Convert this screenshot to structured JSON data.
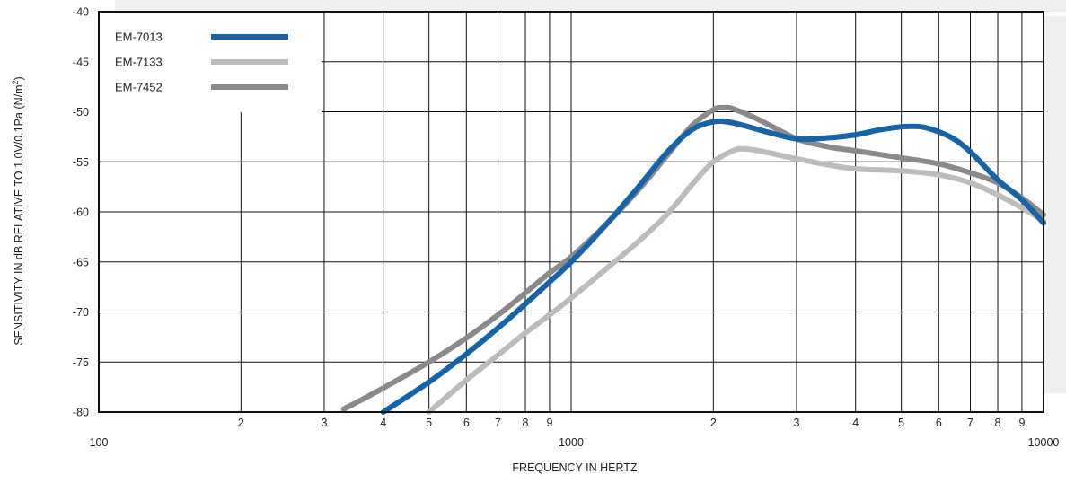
{
  "chart_data": {
    "type": "line",
    "xlabel": "FREQUENCY IN HERTZ",
    "ylabel": "SENSITIVITY IN dB RELATIVE TO 1.0V/0.1Pa (N/m",
    "ylabel_sup": "2",
    "ylabel_end": ")",
    "x_scale": "log",
    "xlim": [
      100,
      10000
    ],
    "ylim": [
      -80,
      -40
    ],
    "grid": true,
    "legend_position": "top-left",
    "x_major_ticks": [
      {
        "value": 100,
        "label": "100"
      },
      {
        "value": 1000,
        "label": "1000"
      },
      {
        "value": 10000,
        "label": "10000"
      }
    ],
    "x_minor_ticks": [
      {
        "value": 200,
        "label": "2"
      },
      {
        "value": 300,
        "label": "3"
      },
      {
        "value": 400,
        "label": "4"
      },
      {
        "value": 500,
        "label": "5"
      },
      {
        "value": 600,
        "label": "6"
      },
      {
        "value": 700,
        "label": "7"
      },
      {
        "value": 800,
        "label": "8"
      },
      {
        "value": 900,
        "label": "9"
      },
      {
        "value": 2000,
        "label": "2"
      },
      {
        "value": 3000,
        "label": "3"
      },
      {
        "value": 4000,
        "label": "4"
      },
      {
        "value": 5000,
        "label": "5"
      },
      {
        "value": 6000,
        "label": "6"
      },
      {
        "value": 7000,
        "label": "7"
      },
      {
        "value": 8000,
        "label": "8"
      },
      {
        "value": 9000,
        "label": "9"
      }
    ],
    "y_ticks": [
      {
        "value": -40,
        "label": "-40"
      },
      {
        "value": -45,
        "label": "-45"
      },
      {
        "value": -50,
        "label": "-50"
      },
      {
        "value": -55,
        "label": "-55"
      },
      {
        "value": -60,
        "label": "-60"
      },
      {
        "value": -65,
        "label": "-65"
      },
      {
        "value": -70,
        "label": "-70"
      },
      {
        "value": -75,
        "label": "-75"
      },
      {
        "value": -80,
        "label": "-80"
      }
    ],
    "series": [
      {
        "name": "EM-7013",
        "color": "#1763a8",
        "x": [
          400,
          500,
          600,
          700,
          800,
          900,
          1000,
          1200,
          1400,
          1600,
          1800,
          2000,
          2200,
          2500,
          3000,
          3500,
          4000,
          4500,
          5000,
          5500,
          6000,
          6500,
          7000,
          8000,
          9000,
          10000
        ],
        "y": [
          -80,
          -77,
          -74.2,
          -71.6,
          -69.2,
          -67,
          -65,
          -61,
          -57.3,
          -54,
          -51.8,
          -51,
          -51.1,
          -51.8,
          -52.7,
          -52.6,
          -52.3,
          -51.8,
          -51.5,
          -51.5,
          -52,
          -52.8,
          -54,
          -56.8,
          -58.8,
          -61.1
        ]
      },
      {
        "name": "EM-7133",
        "color": "#bcbcbc",
        "x": [
          500,
          600,
          700,
          800,
          900,
          1000,
          1200,
          1400,
          1600,
          1800,
          2000,
          2200,
          2300,
          2500,
          3000,
          3500,
          4000,
          5000,
          6000,
          7000,
          8000,
          9000,
          10000
        ],
        "y": [
          -80,
          -76.8,
          -74.3,
          -72.1,
          -70.3,
          -68.6,
          -65.5,
          -62.8,
          -60.2,
          -57.3,
          -55,
          -53.9,
          -53.7,
          -53.9,
          -54.7,
          -55.3,
          -55.7,
          -55.9,
          -56.3,
          -57.1,
          -58.3,
          -59.6,
          -60.9
        ]
      },
      {
        "name": "EM-7452",
        "color": "#8a8a8a",
        "x": [
          330,
          400,
          500,
          600,
          700,
          800,
          900,
          1000,
          1200,
          1400,
          1600,
          1800,
          2000,
          2100,
          2200,
          2500,
          3000,
          3500,
          4000,
          5000,
          6000,
          7000,
          8000,
          9000,
          10000
        ],
        "y": [
          -79.7,
          -77.6,
          -75,
          -72.6,
          -70.3,
          -68.1,
          -66.1,
          -64.5,
          -61,
          -57.6,
          -54.3,
          -51.4,
          -49.8,
          -49.6,
          -49.7,
          -50.8,
          -52.7,
          -53.5,
          -53.9,
          -54.6,
          -55.2,
          -56.1,
          -57.1,
          -58.6,
          -60.3
        ]
      }
    ]
  }
}
